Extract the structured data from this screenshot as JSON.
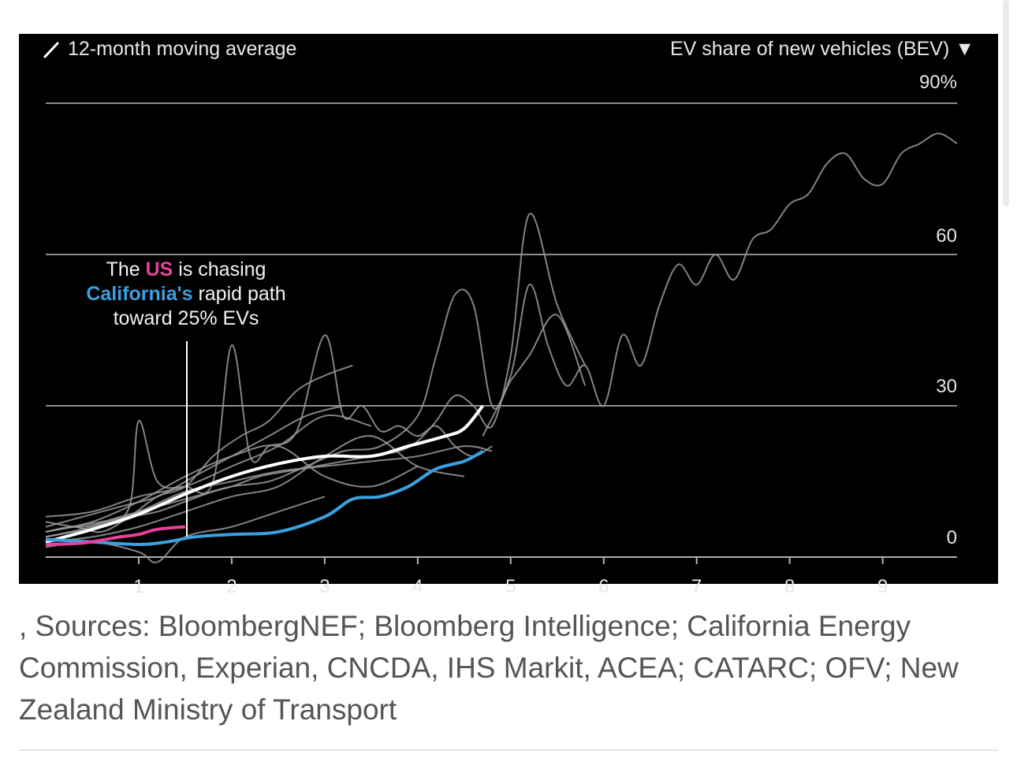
{
  "chart_data": {
    "type": "line",
    "ylabel": "EV share of new vehicles (BEV)",
    "ylabel_marker": "▼",
    "yticks": [
      "90%",
      "60",
      "30",
      "0"
    ],
    "ytick_values": [
      90,
      60,
      30,
      0
    ],
    "ylim": [
      0,
      90
    ],
    "xticks": [
      "1",
      "2",
      "3",
      "4",
      "5",
      "6",
      "7",
      "8",
      "9"
    ],
    "xlim": [
      0,
      9.8
    ],
    "grid": true,
    "legend": "12-month moving average",
    "annotation": {
      "line1_a": "The",
      "line1_us": "US",
      "line1_b": "is chasing",
      "line2_ca": "California's",
      "line2_b": "rapid path",
      "line3": "toward 25% EVs"
    },
    "colors": {
      "background": "#000000",
      "grid": "#8c8c8c",
      "other_series": "#9a9a9a",
      "us": "#e8409a",
      "california": "#3aa0e0",
      "highlight": "#ffffff"
    },
    "series": [
      {
        "role": "highlight",
        "x": [
          0,
          0.5,
          1,
          1.5,
          2,
          2.5,
          3,
          3.5,
          3.9,
          4.3,
          4.5,
          4.7
        ],
        "y": [
          3,
          5.5,
          8.5,
          12.5,
          16,
          18.5,
          20,
          20,
          22,
          24,
          25.5,
          30
        ]
      },
      {
        "name": "California",
        "x": [
          0,
          0.5,
          1,
          1.3,
          1.6,
          2,
          2.5,
          3,
          3.3,
          3.6,
          3.9,
          4.2,
          4.5,
          4.7
        ],
        "y": [
          3.5,
          3,
          2.5,
          3,
          4,
          4.5,
          5,
          8,
          11.5,
          12,
          14,
          17.5,
          19,
          21
        ]
      },
      {
        "name": "US",
        "x": [
          0,
          0.4,
          0.8,
          1.0,
          1.2,
          1.5
        ],
        "y": [
          2.5,
          2.8,
          4.0,
          4.5,
          5.5,
          6.0
        ]
      },
      {
        "x": [
          4.7,
          5.0,
          5.2,
          5.4,
          5.6,
          5.8,
          6.0,
          6.2,
          6.4,
          6.6,
          6.8,
          7.0,
          7.2,
          7.4,
          7.6,
          7.8,
          8.0,
          8.2,
          8.4,
          8.6,
          8.8,
          9.0,
          9.2,
          9.4,
          9.6,
          9.8
        ],
        "y": [
          24,
          36,
          54,
          42,
          34,
          38,
          30,
          44,
          38,
          50,
          58,
          54,
          60,
          55,
          63,
          65,
          70,
          72,
          78,
          80,
          75,
          74,
          80,
          82,
          84,
          82
        ]
      },
      {
        "x": [
          0,
          0.3,
          0.6,
          0.9,
          1.2,
          1.5,
          1.8,
          2.0,
          2.3,
          2.6,
          2.9,
          3.2,
          3.5,
          3.8,
          4.0,
          4.2,
          4.4,
          4.6,
          4.8,
          5.0,
          5.2,
          5.5,
          5.8
        ],
        "y": [
          5,
          6,
          7,
          8,
          9,
          11,
          13,
          14,
          16,
          17,
          18,
          19,
          20,
          21,
          23,
          27,
          32,
          30,
          26,
          40,
          68,
          50,
          38
        ]
      },
      {
        "x": [
          0,
          0.4,
          0.8,
          1.2,
          1.6,
          2.0,
          2.4,
          2.8,
          3.2,
          3.6,
          4.0,
          4.2,
          4.4,
          4.6,
          4.8,
          5.0,
          5.2,
          5.5,
          5.8
        ],
        "y": [
          7,
          6,
          8,
          10,
          12,
          14,
          15,
          18,
          21,
          22,
          28,
          40,
          52,
          50,
          30,
          35,
          40,
          48,
          34
        ]
      },
      {
        "x": [
          0,
          0.3,
          0.6,
          0.9,
          1.0,
          1.2,
          1.5,
          1.8,
          2.0,
          2.2,
          2.4,
          2.7,
          3.0,
          3.2,
          3.4,
          3.6,
          3.8,
          4.0,
          4.2,
          4.4,
          4.6,
          4.8
        ],
        "y": [
          4,
          5,
          6,
          10,
          27,
          15,
          14,
          15,
          42,
          20,
          22,
          25,
          44,
          28,
          30,
          25,
          26,
          24,
          26,
          22,
          20,
          22
        ]
      },
      {
        "x": [
          0,
          0.3,
          0.6,
          0.9,
          1.2,
          1.5,
          1.8,
          2.1,
          2.4,
          2.7,
          3.0,
          3.3
        ],
        "y": [
          5,
          6,
          5,
          8,
          12,
          14,
          20,
          24,
          27,
          33,
          36,
          38
        ]
      },
      {
        "x": [
          0,
          0.4,
          0.8,
          1.2,
          1.6,
          2.0,
          2.4,
          2.8,
          3.2
        ],
        "y": [
          6,
          8,
          10,
          12,
          16,
          20,
          24,
          28,
          30
        ]
      },
      {
        "x": [
          0,
          0.5,
          1.0,
          1.5,
          2.0,
          2.5,
          3.0,
          3.5,
          4.0,
          4.5,
          4.8
        ],
        "y": [
          4,
          6,
          9,
          13,
          15,
          17,
          18,
          19,
          20,
          22,
          21
        ]
      },
      {
        "x": [
          0,
          0.5,
          1.0,
          1.5,
          2.0,
          2.5,
          3.0,
          3.5,
          4.0
        ],
        "y": [
          5,
          7,
          11,
          16,
          20,
          22,
          16,
          14,
          18
        ]
      },
      {
        "x": [
          0,
          0.5,
          1.0,
          1.2,
          1.5,
          2.0,
          2.5,
          3.0
        ],
        "y": [
          2,
          3,
          1,
          -1,
          4,
          6,
          9,
          12
        ]
      },
      {
        "x": [
          0,
          0.5,
          1.0,
          1.5,
          2.0,
          2.5,
          3.0,
          3.5
        ],
        "y": [
          8,
          9,
          12,
          14,
          18,
          22,
          28,
          26
        ]
      },
      {
        "x": [
          0,
          0.5,
          1.0,
          1.5,
          2.0,
          2.5,
          3.0,
          3.5,
          4.0,
          4.5
        ],
        "y": [
          3,
          4,
          6,
          9,
          12,
          14,
          20,
          24,
          18,
          16
        ]
      }
    ]
  },
  "caption": ", Sources: BloombergNEF; Bloomberg Intelligence; California Energy Commission, Experian, CNCDA, IHS Markit, ACEA; CATARC; OFV; New Zealand Ministry of Transport"
}
